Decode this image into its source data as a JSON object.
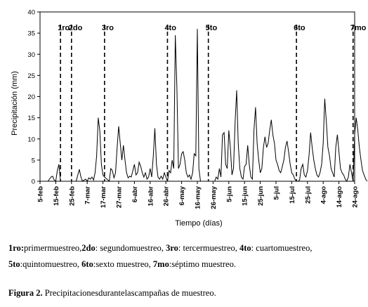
{
  "chart_data": {
    "type": "line",
    "ylabel": "Precipitación (mm)",
    "xlabel": "Tiempo (días)",
    "ylim": [
      0,
      40
    ],
    "yticks": [
      0,
      5,
      10,
      15,
      20,
      25,
      30,
      35,
      40
    ],
    "xlim": [
      0,
      200
    ],
    "xticks": [
      {
        "day": 0,
        "label": "5-feb"
      },
      {
        "day": 10,
        "label": "15-feb"
      },
      {
        "day": 20,
        "label": "25-feb"
      },
      {
        "day": 30,
        "label": "7-mar"
      },
      {
        "day": 40,
        "label": "17-mar"
      },
      {
        "day": 50,
        "label": "27-mar"
      },
      {
        "day": 60,
        "label": "6-abr"
      },
      {
        "day": 70,
        "label": "16-abr"
      },
      {
        "day": 80,
        "label": "26-abr"
      },
      {
        "day": 90,
        "label": "6-may"
      },
      {
        "day": 100,
        "label": "16-may"
      },
      {
        "day": 110,
        "label": "26-may"
      },
      {
        "day": 120,
        "label": "5-jun"
      },
      {
        "day": 130,
        "label": "15-jun"
      },
      {
        "day": 140,
        "label": "25-jun"
      },
      {
        "day": 150,
        "label": "5-jul"
      },
      {
        "day": 160,
        "label": "15-jul"
      },
      {
        "day": 170,
        "label": "25-jul"
      },
      {
        "day": 180,
        "label": "4-ago"
      },
      {
        "day": 190,
        "label": "14-ago"
      },
      {
        "day": 200,
        "label": "24-ago"
      }
    ],
    "sampling_campaigns": [
      {
        "label": "1ro",
        "day": 13
      },
      {
        "label": "2do",
        "day": 20
      },
      {
        "label": "3ro",
        "day": 41
      },
      {
        "label": "4to",
        "day": 81
      },
      {
        "label": "5to",
        "day": 107
      },
      {
        "label": "6to",
        "day": 163
      },
      {
        "label": "7mo",
        "day": 199
      }
    ],
    "series": [
      {
        "color": "#000000",
        "points": [
          [
            0,
            0
          ],
          [
            5,
            0
          ],
          [
            6,
            0.5
          ],
          [
            7,
            1
          ],
          [
            8,
            1.2
          ],
          [
            9,
            0.3
          ],
          [
            10,
            0
          ],
          [
            11,
            2.5
          ],
          [
            12,
            4
          ],
          [
            13,
            0
          ],
          [
            20,
            0
          ],
          [
            23,
            0
          ],
          [
            24,
            1.5
          ],
          [
            25,
            2.8
          ],
          [
            26,
            1
          ],
          [
            27,
            0
          ],
          [
            28,
            0.3
          ],
          [
            29,
            0.5
          ],
          [
            30,
            0
          ],
          [
            31,
            0.8
          ],
          [
            32,
            0.5
          ],
          [
            33,
            1
          ],
          [
            34,
            0.3
          ],
          [
            35,
            2
          ],
          [
            36,
            6
          ],
          [
            37,
            15
          ],
          [
            38,
            12
          ],
          [
            39,
            4
          ],
          [
            40,
            1.5
          ],
          [
            41,
            1
          ],
          [
            44,
            0
          ],
          [
            45,
            3
          ],
          [
            46,
            2.5
          ],
          [
            47,
            0.8
          ],
          [
            48,
            2
          ],
          [
            49,
            8
          ],
          [
            50,
            13
          ],
          [
            51,
            9
          ],
          [
            52,
            5
          ],
          [
            53,
            8.5
          ],
          [
            54,
            5
          ],
          [
            55,
            2
          ],
          [
            56,
            0.8
          ],
          [
            57,
            1.2
          ],
          [
            58,
            1
          ],
          [
            59,
            2.5
          ],
          [
            60,
            4
          ],
          [
            61,
            1.5
          ],
          [
            62,
            2
          ],
          [
            63,
            4.5
          ],
          [
            64,
            3.5
          ],
          [
            65,
            2
          ],
          [
            66,
            1
          ],
          [
            67,
            2
          ],
          [
            68,
            0.5
          ],
          [
            69,
            1
          ],
          [
            70,
            3
          ],
          [
            71,
            1
          ],
          [
            72,
            6
          ],
          [
            73,
            12.5
          ],
          [
            74,
            4
          ],
          [
            75,
            1
          ],
          [
            76,
            0.5
          ],
          [
            77,
            1.2
          ],
          [
            78,
            0.5
          ],
          [
            79,
            2
          ],
          [
            80,
            1
          ],
          [
            81,
            0
          ],
          [
            82,
            2.5
          ],
          [
            83,
            2
          ],
          [
            84,
            5
          ],
          [
            85,
            3
          ],
          [
            86,
            34.5
          ],
          [
            87,
            22
          ],
          [
            88,
            3
          ],
          [
            89,
            4
          ],
          [
            90,
            6.5
          ],
          [
            91,
            7
          ],
          [
            92,
            5
          ],
          [
            93,
            2
          ],
          [
            94,
            1
          ],
          [
            95,
            1.5
          ],
          [
            96,
            0.5
          ],
          [
            97,
            2
          ],
          [
            98,
            6.5
          ],
          [
            99,
            6
          ],
          [
            100,
            36
          ],
          [
            101,
            3
          ],
          [
            102,
            0
          ],
          [
            107,
            0
          ],
          [
            111,
            0
          ],
          [
            112,
            1
          ],
          [
            113,
            0.5
          ],
          [
            114,
            3
          ],
          [
            115,
            1
          ],
          [
            116,
            11
          ],
          [
            117,
            11.5
          ],
          [
            118,
            4
          ],
          [
            119,
            3
          ],
          [
            120,
            12
          ],
          [
            121,
            8
          ],
          [
            122,
            1.5
          ],
          [
            123,
            3
          ],
          [
            124,
            14
          ],
          [
            125,
            21.5
          ],
          [
            126,
            9
          ],
          [
            127,
            3
          ],
          [
            128,
            1
          ],
          [
            129,
            0.5
          ],
          [
            130,
            3.5
          ],
          [
            131,
            4
          ],
          [
            132,
            8.5
          ],
          [
            133,
            4
          ],
          [
            134,
            1
          ],
          [
            135,
            0.5
          ],
          [
            136,
            12
          ],
          [
            137,
            17.5
          ],
          [
            138,
            9
          ],
          [
            139,
            5
          ],
          [
            140,
            2
          ],
          [
            141,
            3
          ],
          [
            142,
            8
          ],
          [
            143,
            10.5
          ],
          [
            144,
            8
          ],
          [
            145,
            9
          ],
          [
            146,
            12
          ],
          [
            147,
            14.5
          ],
          [
            148,
            11
          ],
          [
            149,
            9
          ],
          [
            150,
            5
          ],
          [
            151,
            4
          ],
          [
            152,
            2.5
          ],
          [
            153,
            2
          ],
          [
            154,
            3.5
          ],
          [
            155,
            5
          ],
          [
            156,
            8
          ],
          [
            157,
            9.5
          ],
          [
            158,
            7
          ],
          [
            159,
            4
          ],
          [
            160,
            2
          ],
          [
            161,
            1.5
          ],
          [
            162,
            0.5
          ],
          [
            163,
            0
          ],
          [
            164,
            0
          ],
          [
            165,
            0.3
          ],
          [
            166,
            3
          ],
          [
            167,
            4
          ],
          [
            168,
            1.5
          ],
          [
            169,
            1
          ],
          [
            170,
            2.5
          ],
          [
            171,
            6
          ],
          [
            172,
            11.5
          ],
          [
            173,
            8
          ],
          [
            174,
            5
          ],
          [
            175,
            3
          ],
          [
            176,
            1.5
          ],
          [
            177,
            1
          ],
          [
            178,
            2
          ],
          [
            179,
            4
          ],
          [
            180,
            9
          ],
          [
            181,
            19.5
          ],
          [
            182,
            14
          ],
          [
            183,
            8
          ],
          [
            184,
            6
          ],
          [
            185,
            3
          ],
          [
            186,
            2
          ],
          [
            187,
            1
          ],
          [
            188,
            8
          ],
          [
            189,
            11
          ],
          [
            190,
            7
          ],
          [
            191,
            3
          ],
          [
            192,
            2
          ],
          [
            193,
            1.5
          ],
          [
            194,
            0.5
          ],
          [
            195,
            0
          ],
          [
            196,
            1
          ],
          [
            197,
            4
          ],
          [
            198,
            2
          ],
          [
            199,
            0
          ],
          [
            200,
            11
          ],
          [
            201,
            15
          ],
          [
            202,
            12
          ],
          [
            203,
            8
          ],
          [
            204,
            5
          ],
          [
            205,
            2.5
          ],
          [
            206,
            1.5
          ],
          [
            207,
            0.5
          ],
          [
            208,
            0
          ]
        ]
      }
    ]
  },
  "legend": {
    "line1": [
      {
        "bold": "1ro:",
        "text": "primermuestreo,"
      },
      {
        "bold": "2do",
        "text": ": segundomuestreo, "
      },
      {
        "bold": "3ro",
        "text": ": tercermuestreo, "
      },
      {
        "bold": "4to",
        "text": ": cuartomuestreo,"
      }
    ],
    "line2": [
      {
        "bold": "5to",
        "text": ":quintomuestreo, "
      },
      {
        "bold": "6to",
        "text": ":sexto muestreo, "
      },
      {
        "bold": "7mo",
        "text": ":séptimo muestreo."
      }
    ]
  },
  "figure_caption": {
    "label": "Figura 2.",
    "text": " Precipitacionesdurantelascampañas de muestreo."
  }
}
